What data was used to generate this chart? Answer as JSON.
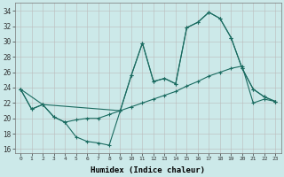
{
  "xlabel": "Humidex (Indice chaleur)",
  "bg_color": "#cce9e9",
  "grid_color": "#bbbbbb",
  "line_color": "#1a6b60",
  "xlim": [
    -0.5,
    23.5
  ],
  "ylim": [
    15.5,
    35.0
  ],
  "xticks": [
    0,
    1,
    2,
    3,
    4,
    5,
    6,
    7,
    8,
    9,
    10,
    11,
    12,
    13,
    14,
    15,
    16,
    17,
    18,
    19,
    20,
    21,
    22,
    23
  ],
  "yticks": [
    16,
    18,
    20,
    22,
    24,
    26,
    28,
    30,
    32,
    34
  ],
  "line1_x": [
    0,
    1,
    2,
    3,
    4,
    5,
    6,
    7,
    8,
    9,
    10,
    11,
    12,
    13,
    14,
    15,
    16,
    17,
    18,
    19,
    20,
    21,
    22,
    23
  ],
  "line1_y": [
    23.8,
    21.2,
    21.8,
    20.2,
    19.5,
    17.6,
    17.0,
    16.8,
    16.5,
    21.0,
    25.6,
    29.8,
    24.8,
    25.2,
    24.5,
    31.8,
    32.5,
    33.8,
    33.0,
    30.5,
    26.5,
    23.8,
    22.8,
    22.2
  ],
  "line2_x": [
    0,
    1,
    2,
    3,
    4,
    5,
    6,
    7,
    8,
    9,
    10,
    11,
    12,
    13,
    14,
    15,
    16,
    17,
    18,
    19,
    20,
    21,
    22,
    23
  ],
  "line2_y": [
    23.8,
    21.2,
    21.8,
    20.2,
    19.5,
    19.8,
    20.0,
    20.0,
    20.5,
    21.0,
    21.5,
    22.0,
    22.5,
    23.0,
    23.5,
    24.2,
    24.8,
    25.5,
    26.0,
    26.5,
    26.8,
    22.0,
    22.5,
    22.2
  ],
  "line3_x": [
    0,
    2,
    9,
    10,
    11,
    12,
    13,
    14,
    15,
    16,
    17,
    18,
    19,
    20,
    21,
    22,
    23
  ],
  "line3_y": [
    23.8,
    21.8,
    21.0,
    25.6,
    29.8,
    24.8,
    25.2,
    24.5,
    31.8,
    32.5,
    33.8,
    33.0,
    30.5,
    26.5,
    23.8,
    22.8,
    22.2
  ]
}
